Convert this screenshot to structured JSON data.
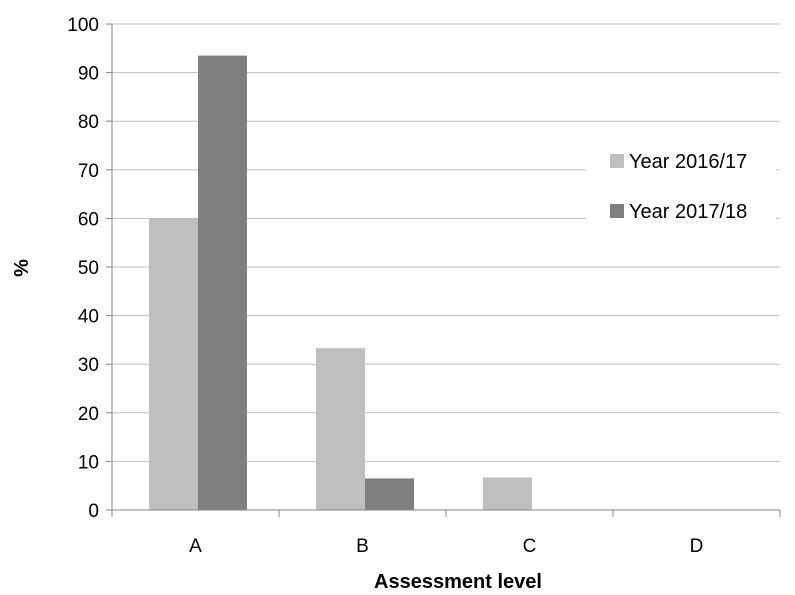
{
  "chart_data": {
    "type": "bar",
    "categories": [
      "A",
      "B",
      "C",
      "D"
    ],
    "series": [
      {
        "name": "Year 2016/17",
        "values": [
          60,
          33.3,
          6.7,
          0
        ],
        "color": "#bfbfbf"
      },
      {
        "name": "Year 2017/18",
        "values": [
          93.5,
          6.5,
          0,
          0
        ],
        "color": "#7f7f7f"
      }
    ],
    "title": "",
    "xlabel": "Assessment level",
    "ylabel": "%",
    "ylim": [
      0,
      100
    ],
    "yticks": [
      0,
      10,
      20,
      30,
      40,
      50,
      60,
      70,
      80,
      90,
      100
    ],
    "grid": true,
    "legend": "right",
    "colors": {
      "gridline": "#bfbfbf",
      "axis": "#868686",
      "text": "#000000"
    }
  }
}
